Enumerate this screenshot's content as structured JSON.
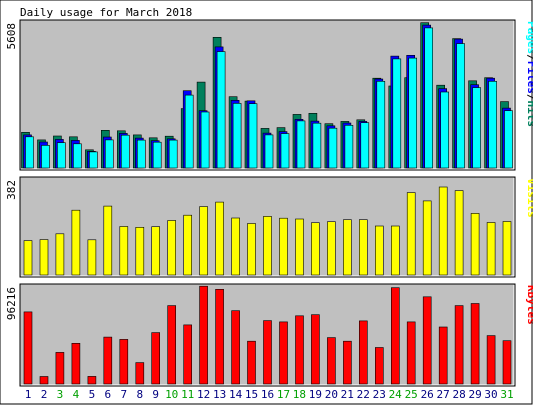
{
  "chart_data": {
    "type": "bar",
    "title": "Daily usage for March 2018",
    "days": [
      "1",
      "2",
      "3",
      "4",
      "5",
      "6",
      "7",
      "8",
      "9",
      "10",
      "11",
      "12",
      "13",
      "14",
      "15",
      "16",
      "17",
      "18",
      "19",
      "20",
      "21",
      "22",
      "23",
      "24",
      "25",
      "26",
      "27",
      "28",
      "29",
      "30",
      "31"
    ],
    "weekend_days": [
      3,
      4,
      10,
      11,
      17,
      18,
      24,
      25,
      31
    ],
    "colors": {
      "hits": "#00805c",
      "files": "#0000ff",
      "pages": "#00ffff",
      "visits": "#ffff00",
      "kbytes": "#ff0000",
      "weekday_label": "#000080",
      "weekend_label": "#00a000",
      "panel_bg": "#c0c0c0"
    },
    "panels": [
      {
        "id": "hits",
        "max_label": "5608",
        "legend": [
          {
            "text": "Pages",
            "color": "#00ffff"
          },
          {
            "text": "/",
            "color": "#000000"
          },
          {
            "text": "Files",
            "color": "#0000ff"
          },
          {
            "text": "/",
            "color": "#000000"
          },
          {
            "text": "Hits",
            "color": "#00805c"
          }
        ],
        "max": 5608,
        "series": [
          {
            "name": "Hits",
            "values": [
              1370,
              1080,
              1230,
              1200,
              700,
              1450,
              1430,
              1270,
              1160,
              1220,
              2280,
              3300,
              5020,
              2740,
              2570,
              1520,
              1550,
              2060,
              2100,
              1700,
              1790,
              1850,
              3450,
              3150,
              3470,
              5580,
              3180,
              4970,
              3350,
              3470,
              2550
            ]
          },
          {
            "name": "Files",
            "values": [
              1270,
              1000,
              1100,
              1060,
              640,
              1190,
              1330,
              1150,
              1050,
              1120,
              2970,
              2200,
              4650,
              2600,
              2580,
              1340,
              1400,
              1870,
              1800,
              1620,
              1730,
              1790,
              3420,
              4300,
              4330,
              5490,
              3050,
              4950,
              3200,
              3450,
              2300
            ]
          },
          {
            "name": "Pages",
            "values": [
              1200,
              870,
              970,
              930,
              620,
              1080,
              1260,
              1070,
              990,
              1070,
              2800,
              2150,
              4470,
              2480,
              2470,
              1270,
              1320,
              1810,
              1720,
              1530,
              1640,
              1740,
              3330,
              4190,
              4220,
              5380,
              2920,
              4780,
              3090,
              3330,
              2200
            ]
          }
        ]
      },
      {
        "id": "visits",
        "max_label": "382",
        "legend": [
          {
            "text": "Visits",
            "color": "#ffff00"
          }
        ],
        "max": 382,
        "series": [
          {
            "name": "Visits",
            "values": [
              137,
              141,
              164,
              258,
              140,
              274,
              193,
              190,
              192,
              217,
              238,
              272,
              290,
              227,
              205,
              233,
              226,
              223,
              208,
              212,
              220,
              220,
              195,
              195,
              328,
              295,
              350,
              336,
              245,
              209,
              213
            ]
          }
        ]
      },
      {
        "id": "kbytes",
        "max_label": "96216",
        "legend": [
          {
            "text": "KBytes",
            "color": "#ff0000"
          }
        ],
        "max": 96216,
        "series": [
          {
            "name": "KBytes",
            "values": [
              70800,
              7400,
              31000,
              40000,
              7500,
              46000,
              43800,
              21000,
              50500,
              77000,
              58000,
              96000,
              93000,
              72000,
              42000,
              62200,
              61000,
              67000,
              68000,
              45600,
              42000,
              62000,
              35800,
              94500,
              61000,
              85600,
              56000,
              77000,
              79000,
              47500,
              42500
            ]
          }
        ]
      }
    ]
  }
}
